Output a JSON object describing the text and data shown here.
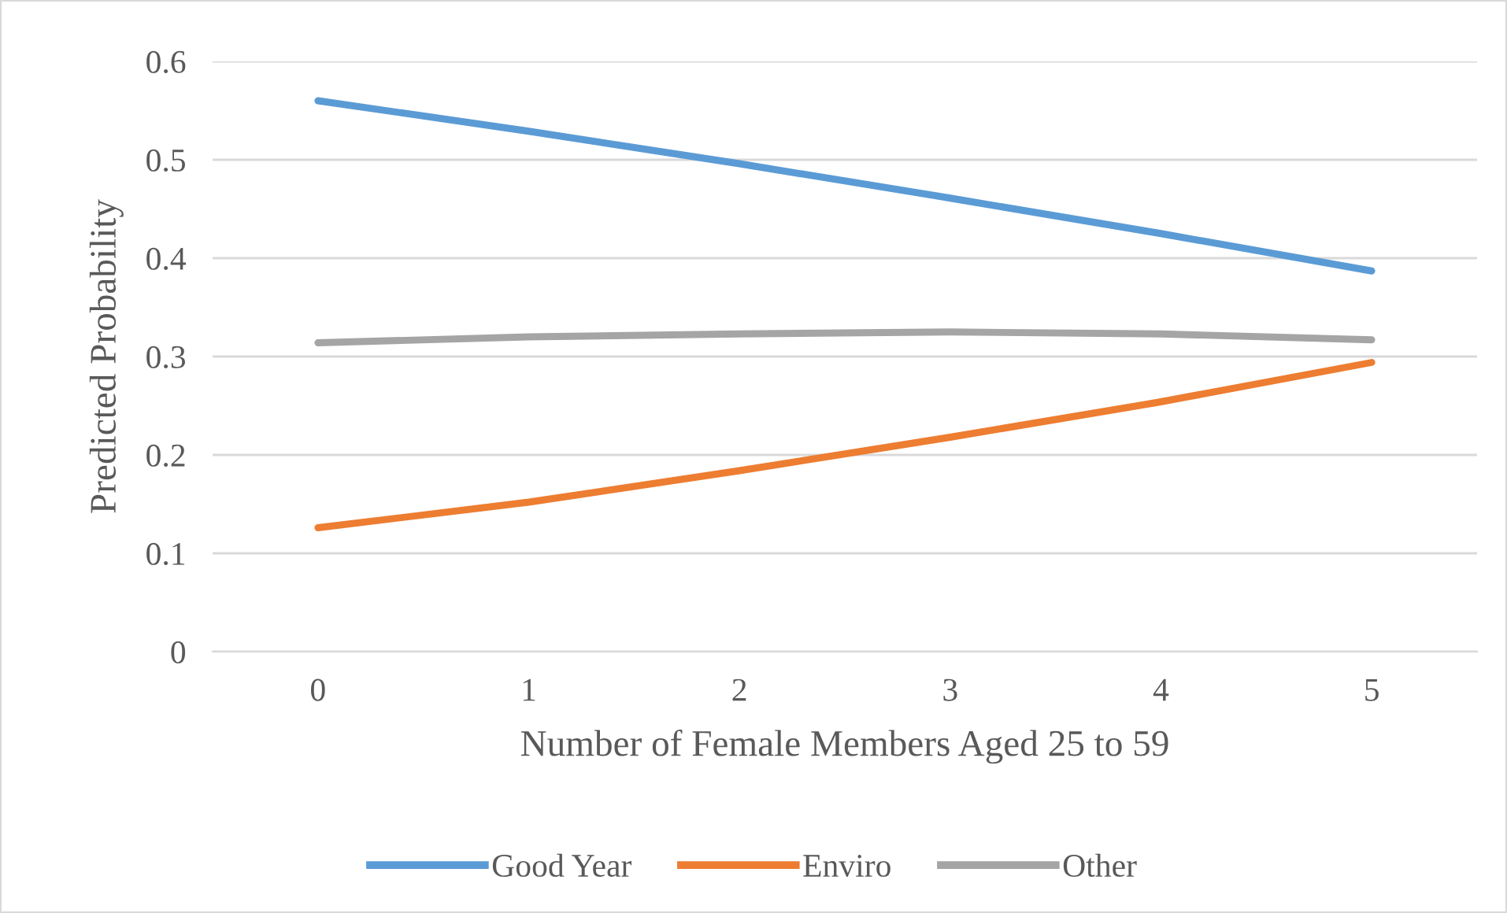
{
  "chart_data": {
    "type": "line",
    "xlabel": "Number of Female Members Aged 25 to 59",
    "ylabel": "Predicted Probability",
    "categories": [
      "0",
      "1",
      "2",
      "3",
      "4",
      "5"
    ],
    "series": [
      {
        "name": "Good Year",
        "color": "#5b9bd5",
        "values": [
          0.56,
          0.529,
          0.496,
          0.461,
          0.425,
          0.387
        ]
      },
      {
        "name": "Enviro",
        "color": "#ed7d31",
        "values": [
          0.126,
          0.152,
          0.184,
          0.218,
          0.254,
          0.294
        ]
      },
      {
        "name": "Other",
        "color": "#a5a5a5",
        "values": [
          0.314,
          0.32,
          0.323,
          0.325,
          0.323,
          0.317
        ]
      }
    ],
    "ylim": [
      0,
      0.6
    ],
    "yticks": [
      {
        "value": 0,
        "label": "0"
      },
      0.1,
      0.2,
      0.3,
      0.4,
      0.5,
      0.6
    ],
    "grid": "y",
    "legend": "bottom",
    "marker": "none",
    "line_style": "solid"
  }
}
